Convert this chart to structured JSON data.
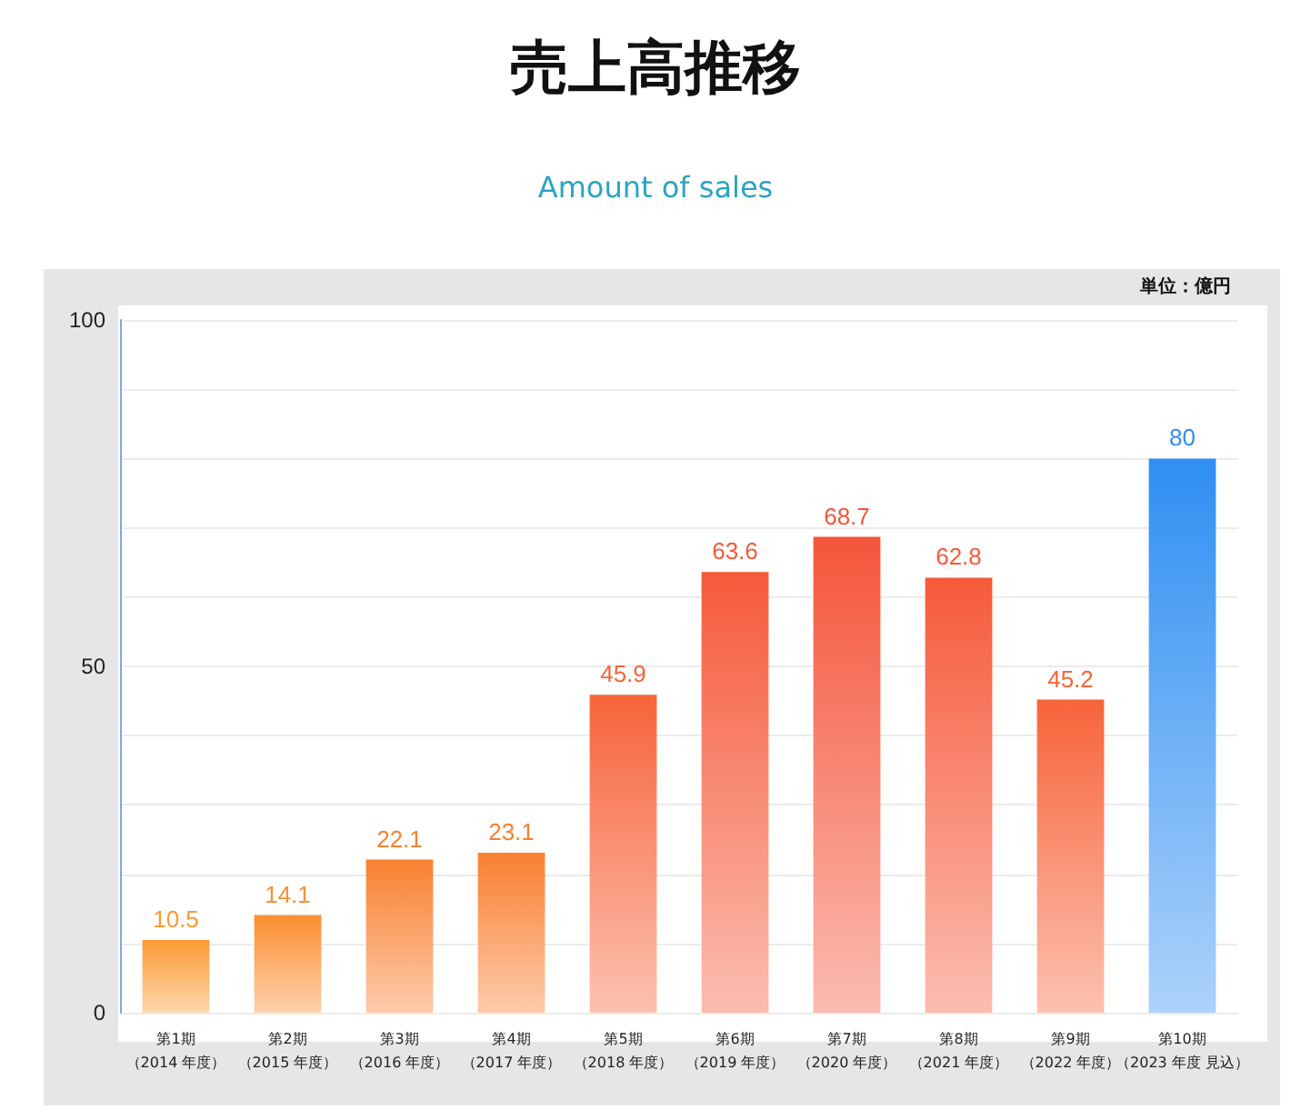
{
  "chart_data": {
    "type": "bar",
    "title": "売上高推移",
    "subtitle": "Amount of sales",
    "ylabel": "単位：億円",
    "categories": [
      "第1期（2014 年度）",
      "第2期（2015 年度）",
      "第3期（2016 年度）",
      "第4期（2017 年度）",
      "第5期（2018 年度）",
      "第6期（2019 年度）",
      "第7期（2020 年度）",
      "第8期（2021 年度）",
      "第9期（2022 年度）",
      "第10期（2023 年度 見込）"
    ],
    "values": [
      10.5,
      14.1,
      22.1,
      23.1,
      45.9,
      63.6,
      68.7,
      62.8,
      45.2,
      80
    ],
    "colors": [
      "#fb9a33",
      "#fb8f30",
      "#f98030",
      "#f97f30",
      "#f7643a",
      "#f65a3a",
      "#f5553a",
      "#f65a3a",
      "#f7643a",
      "#2f8ff2"
    ],
    "ylim": [
      0,
      100
    ],
    "yticks": [
      0,
      {
        "value": 10,
        "label": null
      },
      {
        "value": 20,
        "label": null
      },
      {
        "value": 30,
        "label": null
      },
      {
        "value": 40,
        "label": null
      },
      50,
      {
        "value": 60,
        "label": null
      },
      {
        "value": 70,
        "label": null
      },
      {
        "value": 80,
        "label": null
      },
      {
        "value": 90,
        "label": null
      },
      100
    ],
    "grid": "y",
    "data_labels": true
  }
}
